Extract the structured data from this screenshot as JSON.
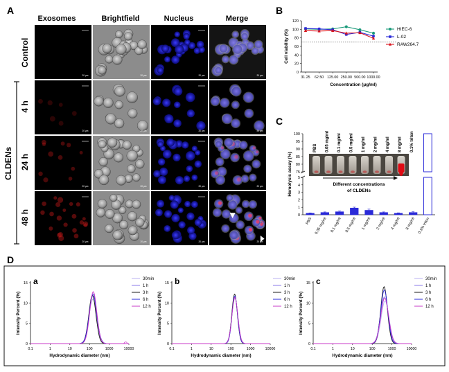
{
  "panel_a": {
    "letter": "A",
    "columns": [
      "Exosomes",
      "Brightfield",
      "Nucleus",
      "Merge"
    ],
    "row_labels": [
      "Control",
      "4 h",
      "24 h",
      "48 h"
    ],
    "group_label": "CLDENs",
    "scale_bar": "20 μm"
  },
  "chart_data": [
    {
      "id": "B",
      "type": "line",
      "panel_letter": "B",
      "title": "",
      "xlabel": "Concentration (μg/ml)",
      "ylabel": "Cell viability (%)",
      "categories": [
        "31.25",
        "62.50",
        "125.00",
        "250.00",
        "500.00",
        "1000.00"
      ],
      "ylim": [
        0,
        120
      ],
      "yticks": [
        "0",
        "20",
        "40",
        "60",
        "80",
        "100",
        "120"
      ],
      "reference_line": 70,
      "series": [
        {
          "name": "HIEC-6",
          "color": "#1a9a7a",
          "marker": "circle",
          "values": [
            101,
            100,
            101,
            106,
            99,
            91
          ]
        },
        {
          "name": "L-02",
          "color": "#2a2ad8",
          "marker": "square",
          "values": [
            102,
            101,
            99,
            88,
            93,
            84
          ]
        },
        {
          "name": "RAW264.7",
          "color": "#d8141e",
          "marker": "triangle",
          "values": [
            97,
            96,
            97,
            91,
            92,
            79
          ]
        }
      ]
    },
    {
      "id": "C",
      "type": "bar",
      "panel_letter": "C",
      "ylabel": "Hemolysis assay (%)",
      "categories": [
        "PBS",
        "0.05 mg/ml",
        "0.1 mg/ml",
        "0.5 mg/ml",
        "1 mg/ml",
        "2 mg/ml",
        "4 mg/ml",
        "8 mg/ml",
        "0.1% triton"
      ],
      "values": [
        0.2,
        0.3,
        0.4,
        0.9,
        0.6,
        0.3,
        0.2,
        0.3,
        100
      ],
      "errors": [
        0.05,
        0.08,
        0.1,
        0.12,
        0.15,
        0.08,
        0.06,
        0.1,
        0
      ],
      "ylim_lower": [
        0,
        5
      ],
      "ylim_upper": [
        75,
        100
      ],
      "yticks_lower": [
        "0",
        "1",
        "2",
        "3",
        "4",
        "5"
      ],
      "yticks_upper": [
        "75",
        "80",
        "85",
        "90",
        "95",
        "100"
      ],
      "inset_labels": [
        "PBS",
        "0.05 mg/ml",
        "0.1 mg/ml",
        "0.5 mg/ml",
        "1 mg/ml",
        "2 mg/ml",
        "4 mg/ml",
        "8 mg/ml",
        "0.1% triton"
      ],
      "inset_caption_line1": "Different concentrations",
      "inset_caption_line2": "of CLDENs"
    },
    {
      "id": "Da",
      "type": "line",
      "panel_letter": "a",
      "xlabel": "Hydrodynamic diameter (nm)",
      "ylabel": "Intensity Percent (%)",
      "xscale": "log",
      "xlim": [
        0.1,
        10000
      ],
      "xticks": [
        "0.1",
        "1",
        "10",
        "100",
        "1000",
        "10000"
      ],
      "ylim": [
        0,
        15
      ],
      "yticks": [
        "0",
        "5",
        "10",
        "15"
      ],
      "legend": [
        "30min",
        "1 h",
        "3 h",
        "6 h",
        "12 h"
      ],
      "series": [
        {
          "name": "30min",
          "peak_x": 150,
          "peak_y": 11.0,
          "sigma": 0.2
        },
        {
          "name": "1 h",
          "peak_x": 145,
          "peak_y": 11.6,
          "sigma": 0.19
        },
        {
          "name": "3 h",
          "peak_x": 140,
          "peak_y": 11.9,
          "sigma": 0.18
        },
        {
          "name": "6 h",
          "peak_x": 150,
          "peak_y": 12.2,
          "sigma": 0.19
        },
        {
          "name": "12 h",
          "peak_x": 155,
          "peak_y": 12.8,
          "sigma": 0.18
        }
      ]
    },
    {
      "id": "Db",
      "type": "line",
      "panel_letter": "b",
      "xlabel": "Hydrodynamic diameter (nm)",
      "ylabel": "Intensity Percent (%)",
      "xscale": "log",
      "xlim": [
        0.1,
        10000
      ],
      "xticks": [
        "0.1",
        "1",
        "10",
        "100",
        "1000",
        "10000"
      ],
      "ylim": [
        0,
        15
      ],
      "yticks": [
        "0",
        "5",
        "10",
        "15"
      ],
      "legend": [
        "30min",
        "1 h",
        "3 h",
        "6 h",
        "12 h"
      ],
      "series": [
        {
          "name": "30min",
          "peak_x": 160,
          "peak_y": 11.2,
          "sigma": 0.15
        },
        {
          "name": "1 h",
          "peak_x": 158,
          "peak_y": 11.5,
          "sigma": 0.15
        },
        {
          "name": "3 h",
          "peak_x": 155,
          "peak_y": 12.2,
          "sigma": 0.14
        },
        {
          "name": "6 h",
          "peak_x": 158,
          "peak_y": 11.8,
          "sigma": 0.14
        },
        {
          "name": "12 h",
          "peak_x": 160,
          "peak_y": 11.4,
          "sigma": 0.15
        }
      ]
    },
    {
      "id": "Dc",
      "type": "line",
      "panel_letter": "c",
      "xlabel": "Hydrodynamic diameter (nm)",
      "ylabel": "Intensity Percent (%)",
      "xscale": "log",
      "xlim": [
        0.1,
        10000
      ],
      "xticks": [
        "0.1",
        "1",
        "10",
        "100",
        "1000",
        "10000"
      ],
      "ylim": [
        0,
        15
      ],
      "yticks": [
        "0",
        "5",
        "10",
        "15"
      ],
      "legend": [
        "30min",
        "1 h",
        "3 h",
        "6 h",
        "12 h"
      ],
      "series": [
        {
          "name": "30min",
          "peak_x": 450,
          "peak_y": 10.5,
          "sigma": 0.2
        },
        {
          "name": "1 h",
          "peak_x": 420,
          "peak_y": 11.5,
          "sigma": 0.2
        },
        {
          "name": "3 h",
          "peak_x": 400,
          "peak_y": 14.0,
          "sigma": 0.17
        },
        {
          "name": "6 h",
          "peak_x": 410,
          "peak_y": 13.2,
          "sigma": 0.18
        },
        {
          "name": "12 h",
          "peak_x": 430,
          "peak_y": 11.2,
          "sigma": 0.2
        }
      ]
    }
  ],
  "panel_d": {
    "letter": "D"
  },
  "colors": {
    "d_series": [
      "#b8b2f0",
      "#8a78e8",
      "#1a1a1a",
      "#2a2ad8",
      "#c838c8"
    ]
  }
}
